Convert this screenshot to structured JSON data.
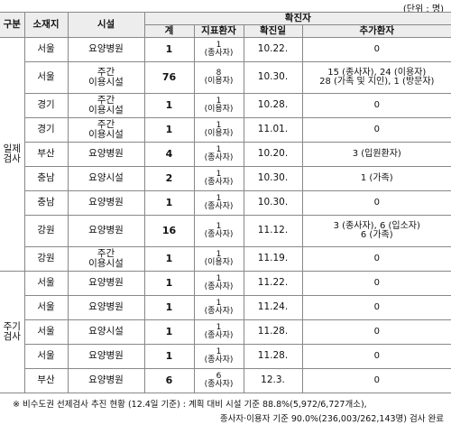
{
  "unit": "(단위 : 명)",
  "header": {
    "group": "구분",
    "location": "소재지",
    "facility": "시설",
    "confirmed": "확진자",
    "sub": [
      "계",
      "지표환자",
      "확진일",
      "추가환자"
    ]
  },
  "groups": [
    {
      "label": "일제\n검사",
      "rows": [
        [
          "서울",
          "요양병원",
          "1",
          "1\n(종사자)",
          "10.22.",
          "0"
        ],
        [
          "서울",
          "주간\n이용시설",
          "76",
          "8\n(이용자)",
          "10.30.",
          "15 (종사자), 24 (이용자)\n28 (가족 및 지인), 1 (방문자)"
        ],
        [
          "경기",
          "주간\n이용시설",
          "1",
          "1\n(이용자)",
          "10.28.",
          "0"
        ],
        [
          "경기",
          "주간\n이용시설",
          "1",
          "1\n(이용자)",
          "11.01.",
          "0"
        ],
        [
          "부산",
          "요양병원",
          "4",
          "1\n(종사자)",
          "10.20.",
          "3 (입원환자)"
        ],
        [
          "충남",
          "요양시설",
          "2",
          "1\n(종사자)",
          "10.30.",
          "1 (가족)"
        ],
        [
          "충남",
          "요양병원",
          "1",
          "1\n(종사자)",
          "10.30.",
          "0"
        ],
        [
          "강원",
          "요양병원",
          "16",
          "1\n(종사자)",
          "11.12.",
          "3 (종사자), 6 (입소자)\n6 (가족)"
        ],
        [
          "강원",
          "주간\n이용시설",
          "1",
          "1\n(이용자)",
          "11.19.",
          "0"
        ]
      ]
    },
    {
      "label": "주기\n검사",
      "rows": [
        [
          "서울",
          "요양병원",
          "1",
          "1\n(종사자)",
          "11.22.",
          "0"
        ],
        [
          "서울",
          "요양병원",
          "1",
          "1\n(종사자)",
          "11.24.",
          "0"
        ],
        [
          "서울",
          "요양시설",
          "1",
          "1\n(종사자)",
          "11.28.",
          "0"
        ],
        [
          "서울",
          "요양병원",
          "1",
          "1\n(종사자)",
          "11.28.",
          "0"
        ],
        [
          "부산",
          "요양병원",
          "6",
          "6\n(종사자)",
          "12.3.",
          "0"
        ]
      ]
    }
  ],
  "footnote": [
    "※ 비수도권 선제검사 추진 현황 (12.4일 기준) : 계획 대비 시설 기준 88.8%(5,972/6,727개소),",
    "종사자·이용자 기준 90.0%(236,003/262,143명) 검사 완료"
  ]
}
